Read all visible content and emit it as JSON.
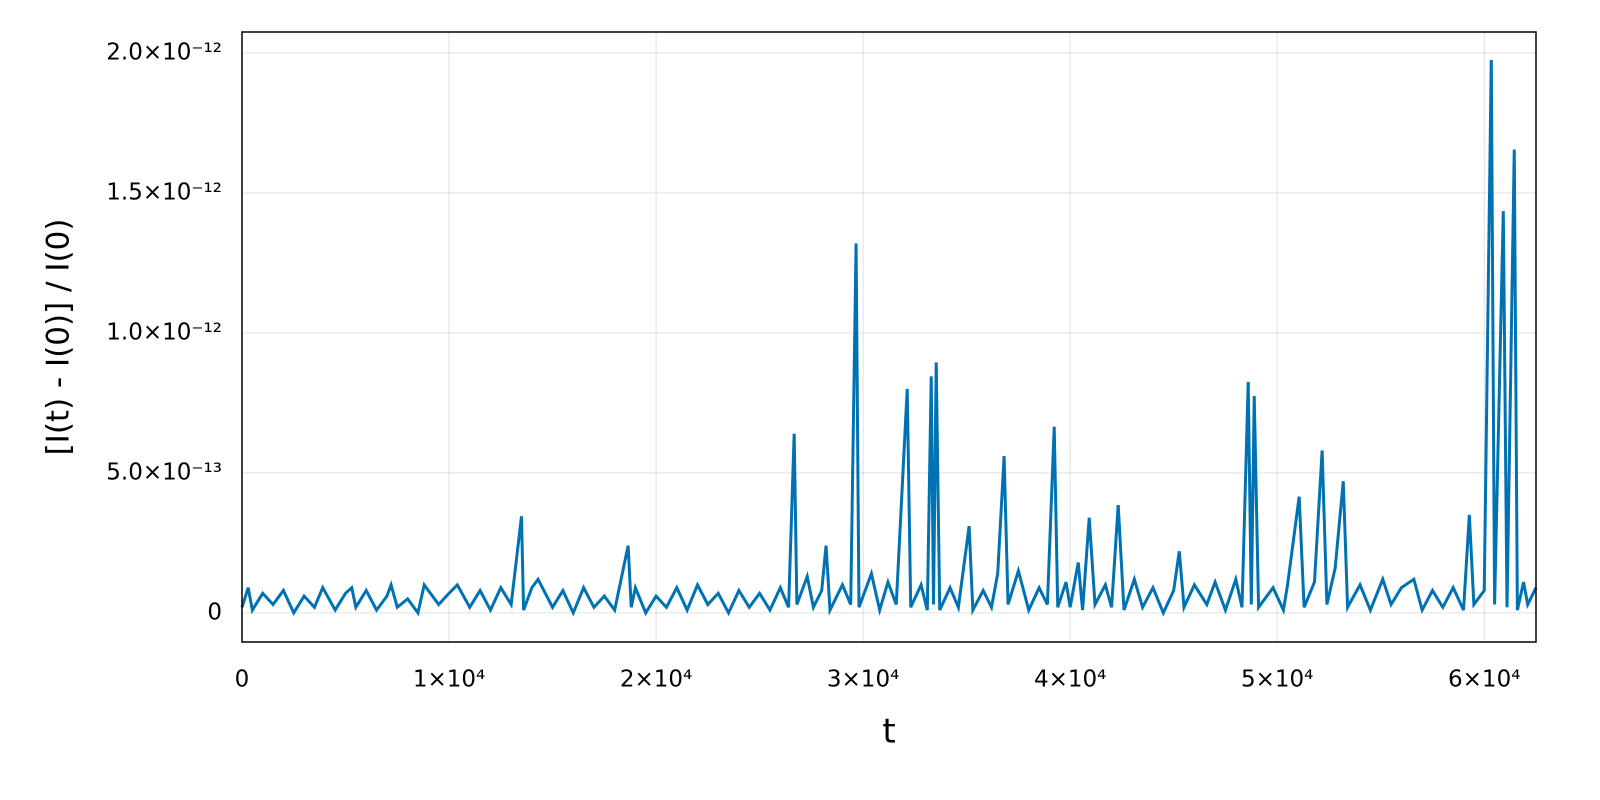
{
  "chart_data": {
    "type": "line",
    "xlabel": "t",
    "ylabel": "[I(t) - I(0)] / I(0)",
    "x": [
      0,
      300,
      500,
      1000,
      1500,
      2000,
      2500,
      3000,
      3500,
      3900,
      4500,
      5000,
      5300,
      5500,
      6000,
      6500,
      7000,
      7200,
      7500,
      8000,
      8500,
      8800,
      9500,
      10000,
      10400,
      11000,
      11500,
      12000,
      12500,
      13000,
      13500,
      13600,
      14000,
      14300,
      15000,
      15500,
      16000,
      16500,
      17000,
      17500,
      18000,
      18650,
      18800,
      19000,
      19500,
      20000,
      20500,
      21000,
      21500,
      22000,
      22500,
      23000,
      23500,
      24000,
      24500,
      25000,
      25500,
      26000,
      26400,
      26670,
      26800,
      27300,
      27600,
      28000,
      28210,
      28400,
      29000,
      29400,
      29660,
      29800,
      30400,
      30800,
      31200,
      31600,
      32130,
      32300,
      32800,
      33100,
      33290,
      33400,
      33530,
      33700,
      34200,
      34600,
      35120,
      35300,
      35800,
      36200,
      36500,
      36810,
      37000,
      37500,
      38000,
      38500,
      38900,
      39230,
      39400,
      39800,
      40000,
      40390,
      40600,
      40920,
      41200,
      41700,
      42000,
      42320,
      42600,
      43100,
      43500,
      44000,
      44500,
      45000,
      45270,
      45500,
      46000,
      46600,
      47000,
      47500,
      48000,
      48300,
      48600,
      48750,
      48890,
      49100,
      49800,
      50300,
      50500,
      51060,
      51300,
      51800,
      52170,
      52400,
      52800,
      53190,
      53400,
      54000,
      54500,
      55100,
      55500,
      56000,
      56600,
      57000,
      57500,
      58000,
      58500,
      59000,
      59280,
      59500,
      60000,
      60340,
      60500,
      60920,
      61100,
      61450,
      61600,
      61900,
      62100,
      62500
    ],
    "series": [
      {
        "color": "#0072b2",
        "values": [
          2e-14,
          9e-14,
          1e-14,
          7e-14,
          3e-14,
          8e-14,
          0,
          6e-14,
          2e-14,
          9e-14,
          1e-14,
          7e-14,
          9e-14,
          2e-14,
          8e-14,
          1e-14,
          6e-14,
          1e-13,
          2e-14,
          5e-14,
          0,
          1e-13,
          3e-14,
          7e-14,
          1e-13,
          2e-14,
          8e-14,
          1e-14,
          9e-14,
          3e-14,
          3.45e-13,
          1e-14,
          9e-14,
          1.2e-13,
          2e-14,
          8e-14,
          0,
          9e-14,
          2e-14,
          6e-14,
          1e-14,
          2.4e-13,
          2e-14,
          9e-14,
          0,
          6e-14,
          2e-14,
          9e-14,
          1e-14,
          1e-13,
          3e-14,
          7e-14,
          0,
          8e-14,
          2e-14,
          7e-14,
          1e-14,
          9e-14,
          2e-14,
          6.4e-13,
          3e-14,
          1.3e-13,
          2e-14,
          8e-14,
          2.4e-13,
          1e-14,
          1e-13,
          3e-14,
          1.32e-12,
          2e-14,
          1.4e-13,
          1e-14,
          1.1e-13,
          3e-14,
          8e-13,
          2e-14,
          1e-13,
          1e-14,
          8.45e-13,
          3e-14,
          8.95e-13,
          1e-14,
          9e-14,
          2e-14,
          3.1e-13,
          1e-14,
          8e-14,
          2e-14,
          1.4e-13,
          5.6e-13,
          3e-14,
          1.5e-13,
          1e-14,
          9e-14,
          3e-14,
          6.65e-13,
          2e-14,
          1.1e-13,
          2e-14,
          1.8e-13,
          1e-14,
          3.4e-13,
          3e-14,
          1e-13,
          2e-14,
          3.85e-13,
          1e-14,
          1.2e-13,
          2e-14,
          9e-14,
          0,
          8e-14,
          2.2e-13,
          2e-14,
          1e-13,
          3e-14,
          1.1e-13,
          1e-14,
          1.2e-13,
          2e-14,
          8.25e-13,
          3e-14,
          7.75e-13,
          2e-14,
          9e-14,
          1e-14,
          1e-13,
          4.15e-13,
          2e-14,
          1.1e-13,
          5.8e-13,
          3e-14,
          1.6e-13,
          4.7e-13,
          2e-14,
          1e-13,
          1e-14,
          1.2e-13,
          3e-14,
          9e-14,
          1.2e-13,
          1e-14,
          8e-14,
          2e-14,
          9e-14,
          1e-14,
          3.5e-13,
          3e-14,
          8e-14,
          1.975e-12,
          3e-14,
          1.435e-12,
          2e-14,
          1.655e-12,
          1e-14,
          1.1e-13,
          3e-14,
          9e-14
        ]
      }
    ],
    "xlim": [
      0,
      62500
    ],
    "ylim": [
      -1.04e-13,
      2.075e-12
    ],
    "xticks": [
      0,
      {
        "value": 10000,
        "label": "1×10⁴"
      },
      {
        "value": 20000,
        "label": "2×10⁴"
      },
      {
        "value": 30000,
        "label": "3×10⁴"
      },
      {
        "value": 40000,
        "label": "4×10⁴"
      },
      {
        "value": 50000,
        "label": "5×10⁴"
      },
      {
        "value": 60000,
        "label": "6×10⁴"
      }
    ],
    "yticks": [
      0,
      {
        "value": 5e-13,
        "label": "5.0×10⁻¹³"
      },
      {
        "value": 1e-12,
        "label": "1.0×10⁻¹²"
      },
      {
        "value": 1.5e-12,
        "label": "1.5×10⁻¹²"
      },
      {
        "value": 2e-12,
        "label": "2.0×10⁻¹²"
      }
    ],
    "grid": true
  }
}
